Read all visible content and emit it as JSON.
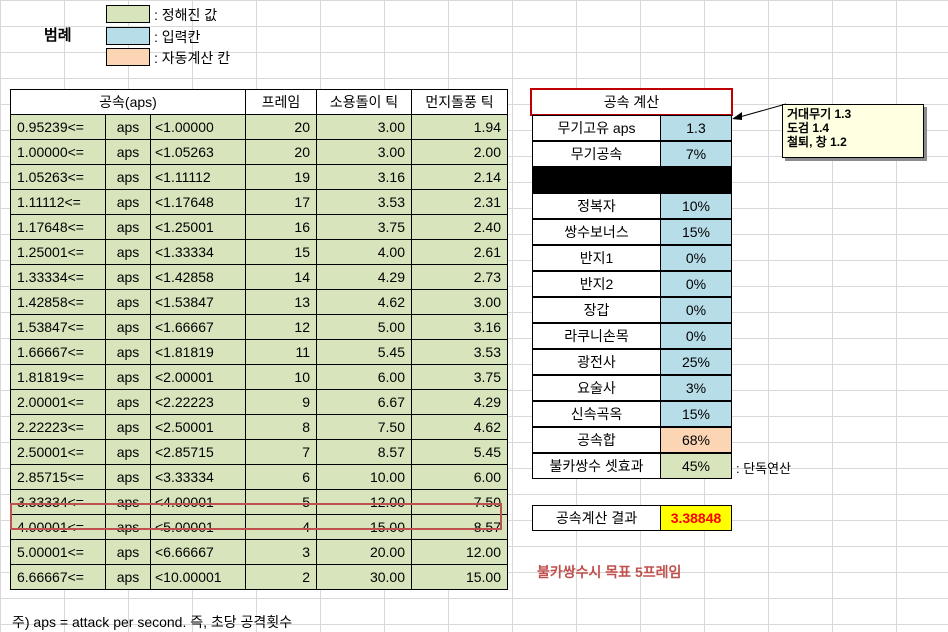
{
  "legend": {
    "title": "범례",
    "items": [
      {
        "label": ": 정해진 값",
        "color": "#d8e4bc"
      },
      {
        "label": ": 입력칸",
        "color": "#b7dde8"
      },
      {
        "label": ": 자동계산 칸",
        "color": "#fcd5b4"
      }
    ]
  },
  "main_table": {
    "headers": [
      "공속(aps)",
      "프레임",
      "소용돌이 틱",
      "먼지돌풍 틱"
    ],
    "rows": [
      {
        "from": "0.95239<=",
        "unit": "aps",
        "to": "<1.00000",
        "frame": "20",
        "whirl": "3.00",
        "dust": "1.94"
      },
      {
        "from": "1.00000<=",
        "unit": "aps",
        "to": "<1.05263",
        "frame": "20",
        "whirl": "3.00",
        "dust": "2.00"
      },
      {
        "from": "1.05263<=",
        "unit": "aps",
        "to": "<1.11112",
        "frame": "19",
        "whirl": "3.16",
        "dust": "2.14"
      },
      {
        "from": "1.11112<=",
        "unit": "aps",
        "to": "<1.17648",
        "frame": "17",
        "whirl": "3.53",
        "dust": "2.31"
      },
      {
        "from": "1.17648<=",
        "unit": "aps",
        "to": "<1.25001",
        "frame": "16",
        "whirl": "3.75",
        "dust": "2.40"
      },
      {
        "from": "1.25001<=",
        "unit": "aps",
        "to": "<1.33334",
        "frame": "15",
        "whirl": "4.00",
        "dust": "2.61"
      },
      {
        "from": "1.33334<=",
        "unit": "aps",
        "to": "<1.42858",
        "frame": "14",
        "whirl": "4.29",
        "dust": "2.73"
      },
      {
        "from": "1.42858<=",
        "unit": "aps",
        "to": "<1.53847",
        "frame": "13",
        "whirl": "4.62",
        "dust": "3.00"
      },
      {
        "from": "1.53847<=",
        "unit": "aps",
        "to": "<1.66667",
        "frame": "12",
        "whirl": "5.00",
        "dust": "3.16"
      },
      {
        "from": "1.66667<=",
        "unit": "aps",
        "to": "<1.81819",
        "frame": "11",
        "whirl": "5.45",
        "dust": "3.53"
      },
      {
        "from": "1.81819<=",
        "unit": "aps",
        "to": "<2.00001",
        "frame": "10",
        "whirl": "6.00",
        "dust": "3.75"
      },
      {
        "from": "2.00001<=",
        "unit": "aps",
        "to": "<2.22223",
        "frame": "9",
        "whirl": "6.67",
        "dust": "4.29"
      },
      {
        "from": "2.22223<=",
        "unit": "aps",
        "to": "<2.50001",
        "frame": "8",
        "whirl": "7.50",
        "dust": "4.62"
      },
      {
        "from": "2.50001<=",
        "unit": "aps",
        "to": "<2.85715",
        "frame": "7",
        "whirl": "8.57",
        "dust": "5.45"
      },
      {
        "from": "2.85715<=",
        "unit": "aps",
        "to": "<3.33334",
        "frame": "6",
        "whirl": "10.00",
        "dust": "6.00"
      },
      {
        "from": "3.33334<=",
        "unit": "aps",
        "to": "<4.00001",
        "frame": "5",
        "whirl": "12.00",
        "dust": "7.50"
      },
      {
        "from": "4.00001<=",
        "unit": "aps",
        "to": "<5.00001",
        "frame": "4",
        "whirl": "15.00",
        "dust": "8.57"
      },
      {
        "from": "5.00001<=",
        "unit": "aps",
        "to": "<6.66667",
        "frame": "3",
        "whirl": "20.00",
        "dust": "12.00"
      },
      {
        "from": "6.66667<=",
        "unit": "aps",
        "to": "<10.00001",
        "frame": "2",
        "whirl": "30.00",
        "dust": "15.00"
      }
    ]
  },
  "calc": {
    "title": "공속 계산",
    "weapon_aps": {
      "label": "무기고유 aps",
      "value": "1.3"
    },
    "weapon_speed": {
      "label": "무기공속",
      "value": "7%"
    },
    "items": [
      {
        "label": "정복자",
        "value": "10%"
      },
      {
        "label": "쌍수보너스",
        "value": "15%"
      },
      {
        "label": "반지1",
        "value": "0%"
      },
      {
        "label": "반지2",
        "value": "0%"
      },
      {
        "label": "장갑",
        "value": "0%"
      },
      {
        "label": "라쿠니손목",
        "value": "0%"
      },
      {
        "label": "광전사",
        "value": "25%"
      },
      {
        "label": "요술사",
        "value": "3%"
      },
      {
        "label": "신속곡옥",
        "value": "15%"
      }
    ],
    "total": {
      "label": "공속합",
      "value": "68%"
    },
    "set_effect": {
      "label": "불카쌍수 셋효과",
      "value": "45%",
      "note": ": 단독연산"
    },
    "result": {
      "label": "공속계산 결과",
      "value": "3.38848"
    },
    "target_note": "불카쌍수시 목표 5프레임"
  },
  "comment": {
    "lines": [
      "거대무기 1.3",
      "도검 1.4",
      "철퇴, 창 1.2"
    ]
  },
  "footer": "주) aps = attack per second. 즉, 초당 공격횟수"
}
